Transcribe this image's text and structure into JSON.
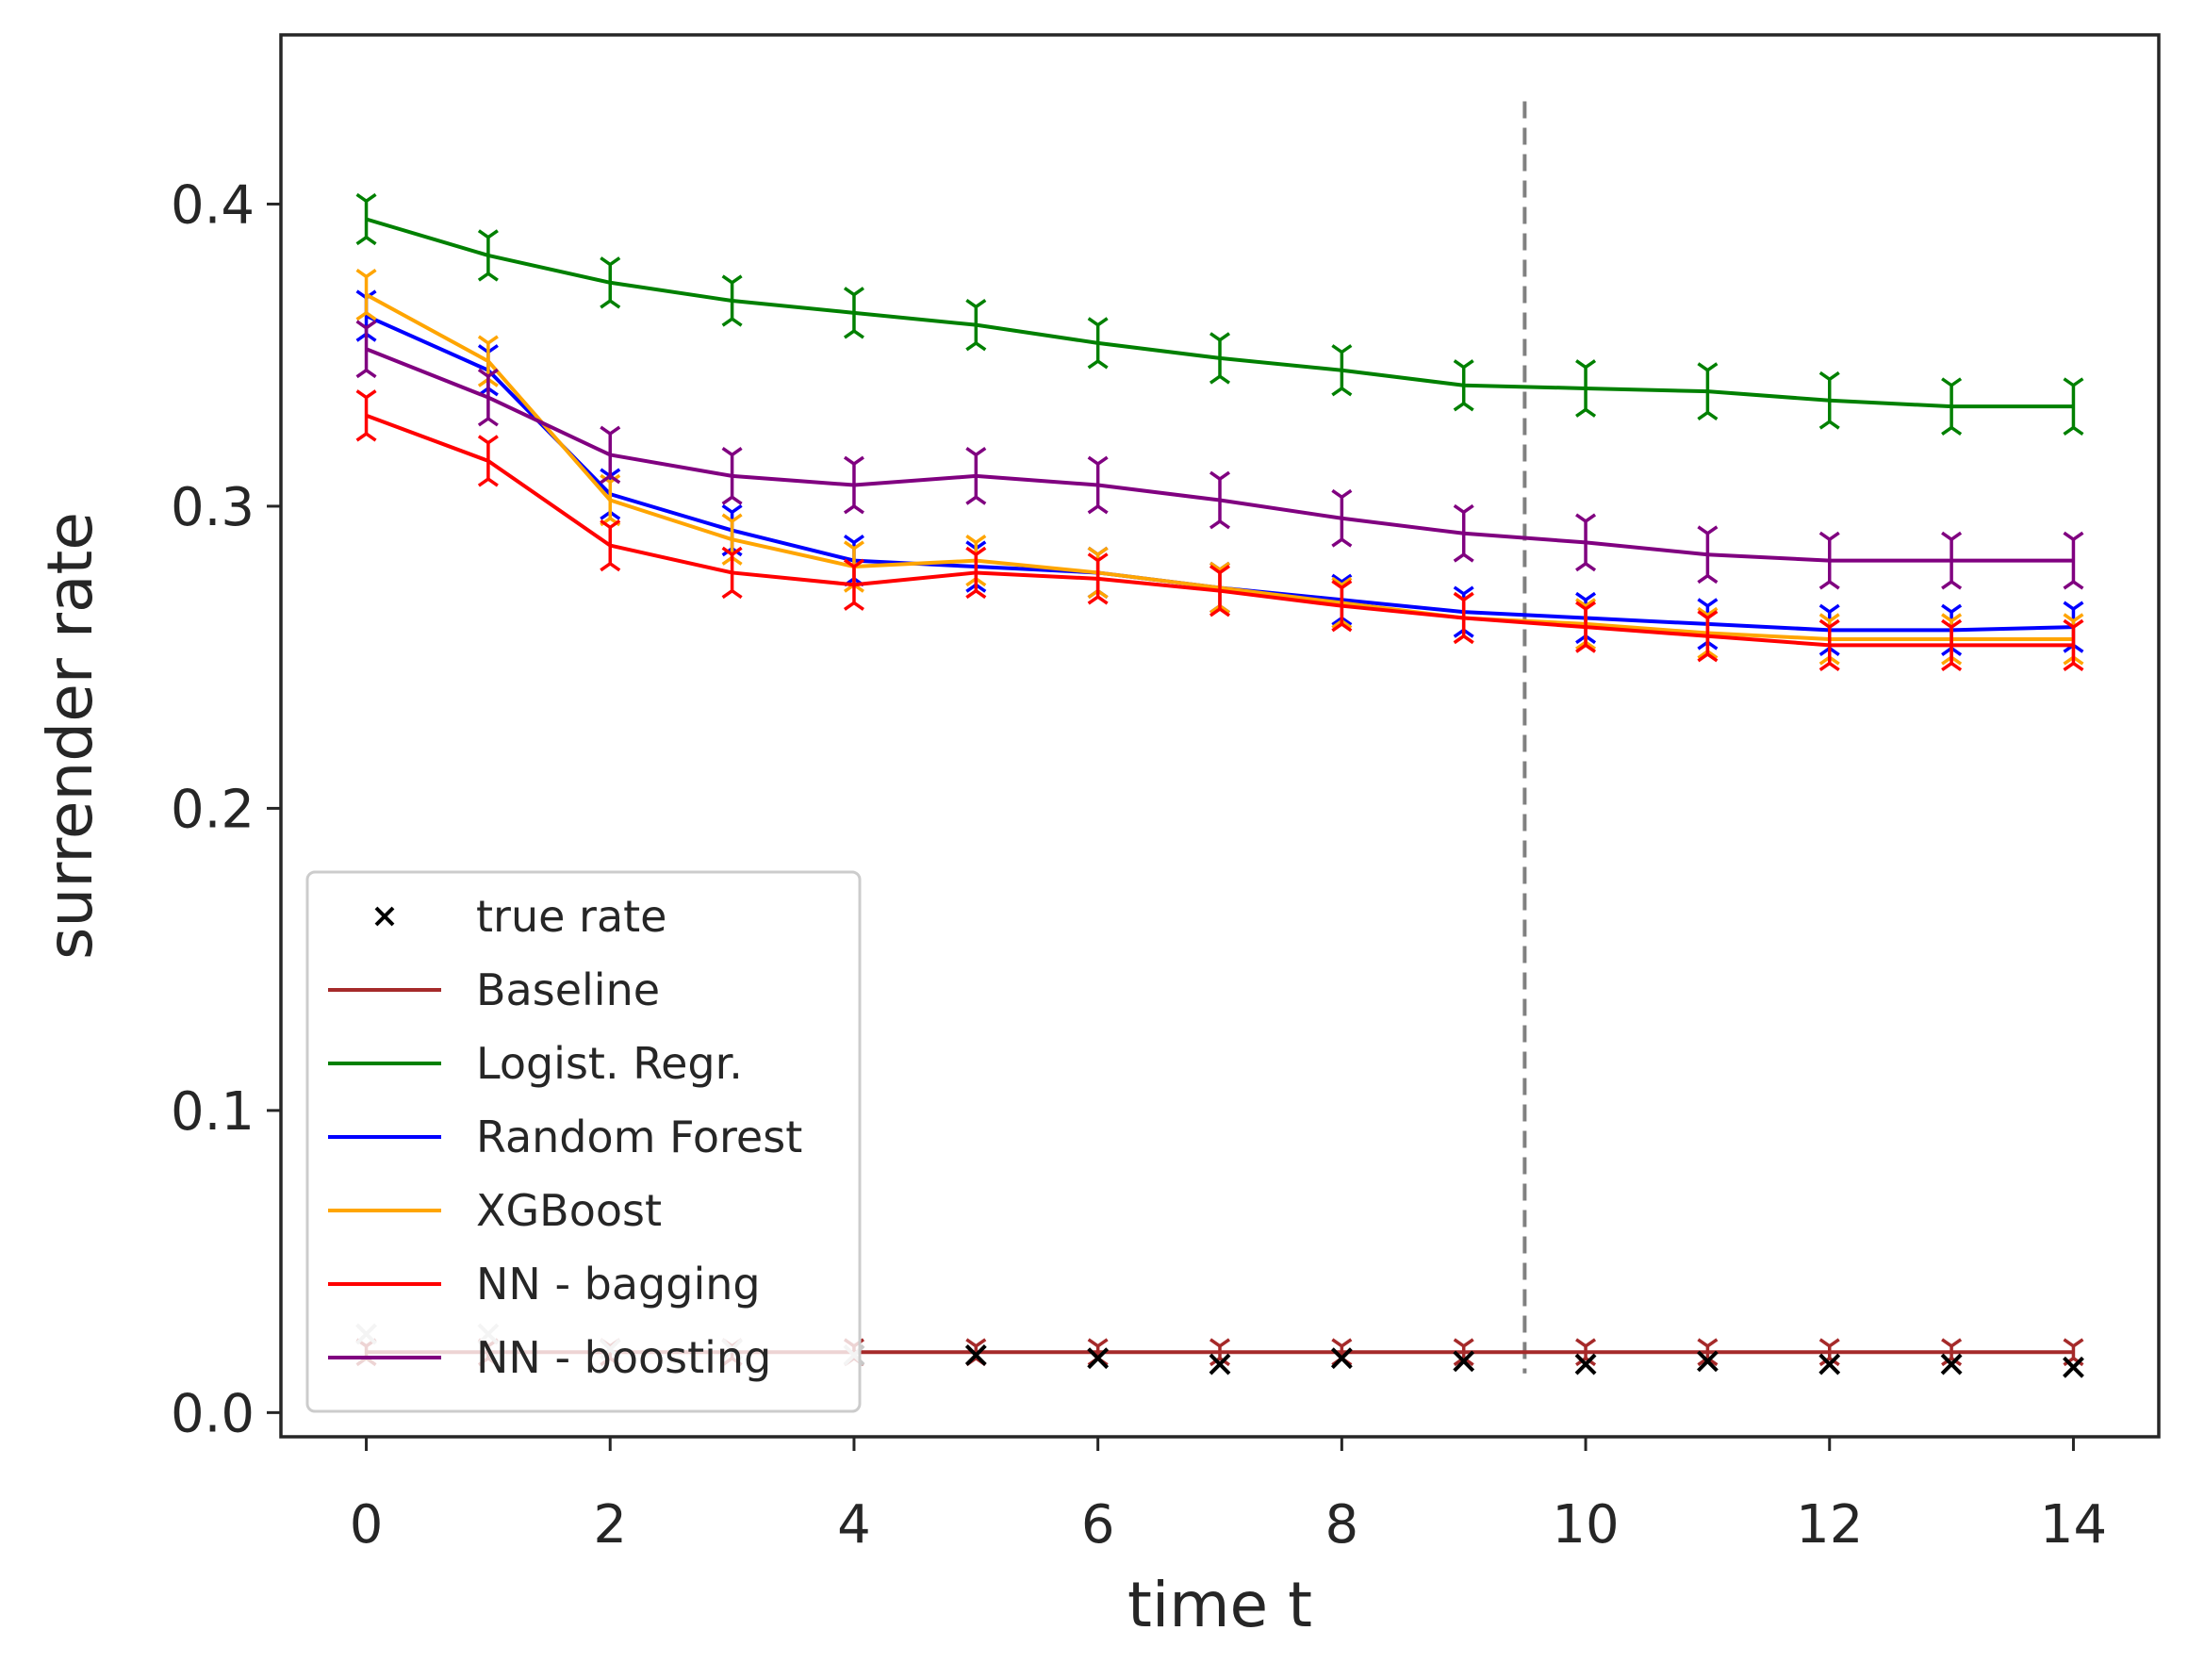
{
  "chart_data": {
    "type": "line",
    "title": "",
    "xlabel": "time t",
    "ylabel": "surrender rate",
    "xlim": [
      -0.7,
      14.7
    ],
    "ylim": [
      -0.008,
      0.456
    ],
    "xticks": [
      0,
      2,
      4,
      6,
      8,
      10,
      12,
      14
    ],
    "xtick_labels": [
      "0",
      "2",
      "4",
      "6",
      "8",
      "10",
      "12",
      "14"
    ],
    "yticks": [
      0.0,
      0.1,
      0.2,
      0.3,
      0.4
    ],
    "ytick_labels": [
      "0.0",
      "0.1",
      "0.2",
      "0.3",
      "0.4"
    ],
    "grid": false,
    "legend_position": "lower-left",
    "vline": {
      "x": 9.5,
      "y_from": 0.013,
      "y_to": 0.434,
      "style": "dashed",
      "color": "#808080"
    },
    "x": [
      0,
      1,
      2,
      3,
      4,
      5,
      6,
      7,
      8,
      9,
      10,
      11,
      12,
      13,
      14
    ],
    "true_rate": {
      "name": "true rate",
      "marker": "x",
      "color": "#000000",
      "faded_color": "#c8c8c8",
      "faded_points": 5,
      "values": [
        0.026,
        0.026,
        0.021,
        0.021,
        0.019,
        0.019,
        0.018,
        0.016,
        0.018,
        0.017,
        0.016,
        0.017,
        0.016,
        0.016,
        0.015
      ]
    },
    "series": [
      {
        "name": "Baseline",
        "color": "#a52a2a",
        "values": [
          0.02,
          0.02,
          0.02,
          0.02,
          0.02,
          0.02,
          0.02,
          0.02,
          0.02,
          0.02,
          0.02,
          0.02,
          0.02,
          0.02,
          0.02
        ],
        "err": [
          0.002,
          0.002,
          0.002,
          0.002,
          0.002,
          0.002,
          0.002,
          0.002,
          0.002,
          0.002,
          0.002,
          0.002,
          0.002,
          0.002,
          0.002
        ]
      },
      {
        "name": "Logist. Regr.",
        "color": "#008000",
        "values": [
          0.395,
          0.383,
          0.374,
          0.368,
          0.364,
          0.36,
          0.354,
          0.349,
          0.345,
          0.34,
          0.339,
          0.338,
          0.335,
          0.333,
          0.333
        ],
        "err": [
          0.006,
          0.006,
          0.006,
          0.006,
          0.006,
          0.006,
          0.006,
          0.006,
          0.006,
          0.006,
          0.007,
          0.007,
          0.007,
          0.007,
          0.007
        ]
      },
      {
        "name": "Random Forest",
        "color": "#0000ff",
        "values": [
          0.363,
          0.345,
          0.304,
          0.292,
          0.282,
          0.28,
          0.278,
          0.273,
          0.269,
          0.265,
          0.263,
          0.261,
          0.259,
          0.259,
          0.26
        ],
        "err": [
          0.006,
          0.006,
          0.006,
          0.006,
          0.006,
          0.006,
          0.006,
          0.006,
          0.006,
          0.006,
          0.006,
          0.006,
          0.006,
          0.006,
          0.006
        ]
      },
      {
        "name": "XGBoost",
        "color": "#ffa500",
        "values": [
          0.37,
          0.348,
          0.302,
          0.289,
          0.28,
          0.282,
          0.278,
          0.273,
          0.268,
          0.263,
          0.261,
          0.258,
          0.256,
          0.256,
          0.256
        ],
        "err": [
          0.006,
          0.006,
          0.006,
          0.006,
          0.006,
          0.006,
          0.006,
          0.006,
          0.006,
          0.006,
          0.006,
          0.006,
          0.006,
          0.006,
          0.006
        ]
      },
      {
        "name": "NN - bagging",
        "color": "#ff0000",
        "values": [
          0.33,
          0.315,
          0.287,
          0.278,
          0.274,
          0.278,
          0.276,
          0.272,
          0.267,
          0.263,
          0.26,
          0.257,
          0.254,
          0.254,
          0.254
        ],
        "err": [
          0.006,
          0.006,
          0.006,
          0.006,
          0.006,
          0.006,
          0.006,
          0.006,
          0.006,
          0.006,
          0.006,
          0.006,
          0.006,
          0.006,
          0.006
        ]
      },
      {
        "name": "NN - boosting",
        "color": "#800080",
        "values": [
          0.352,
          0.336,
          0.317,
          0.31,
          0.307,
          0.31,
          0.307,
          0.302,
          0.296,
          0.291,
          0.288,
          0.284,
          0.282,
          0.282,
          0.282
        ],
        "err": [
          0.007,
          0.007,
          0.007,
          0.007,
          0.007,
          0.007,
          0.007,
          0.007,
          0.007,
          0.007,
          0.007,
          0.007,
          0.007,
          0.007,
          0.007
        ]
      }
    ]
  }
}
